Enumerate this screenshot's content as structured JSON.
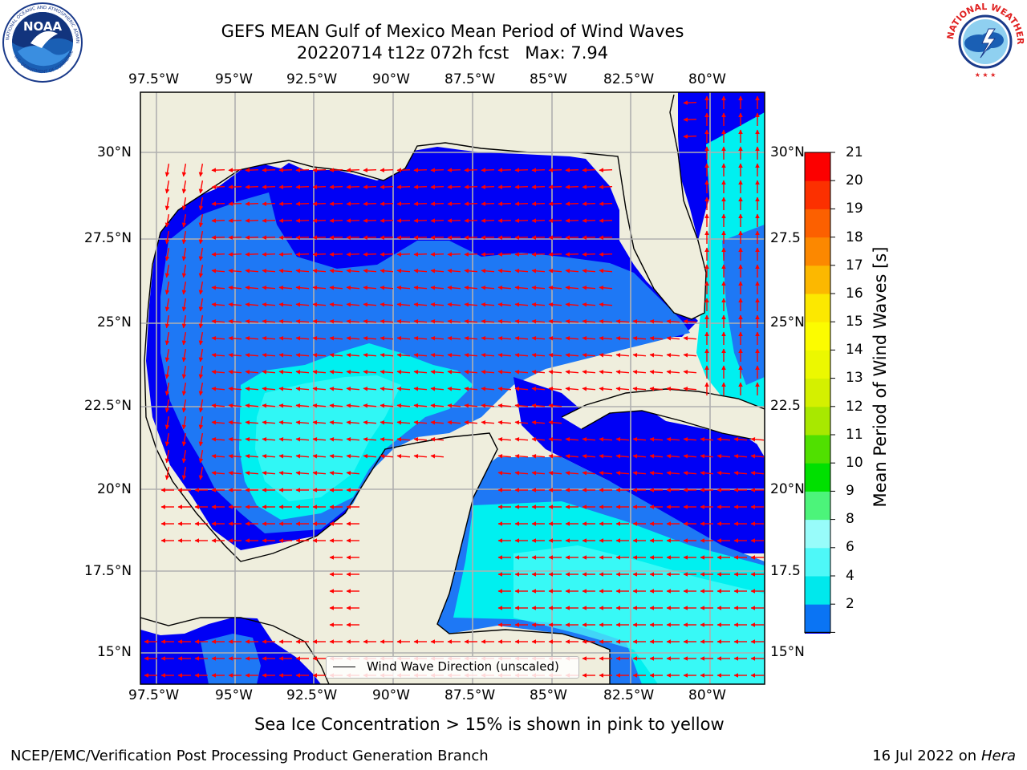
{
  "header": {
    "title_line1": "GEFS MEAN Gulf of Mexico Mean Period of Wind Waves",
    "title_line2": "20220714 t12z 072h fcst   Max: 7.94"
  },
  "logos": {
    "left": "NOAA",
    "left_ring_text": "NATIONAL OCEANIC AND ATMOSPHERIC ADMINISTRATION",
    "left_ring_text_bottom": "U.S. DEPARTMENT OF COMMERCE",
    "right_ring_text": "NATIONAL WEATHER SERVICE"
  },
  "map": {
    "lon_labels": [
      "97.5°W",
      "95°W",
      "92.5°W",
      "90°W",
      "87.5°W",
      "85°W",
      "82.5°W",
      "80°W"
    ],
    "lat_labels_left": [
      "30°N",
      "27.5°N",
      "25°N",
      "22.5°N",
      "20°N",
      "17.5°N",
      "15°N"
    ],
    "lat_labels_right": [
      "30°N",
      "27.5",
      "25°N",
      "22.5",
      "20°N",
      "17.5",
      "15°N"
    ],
    "legend_label": "Wind Wave Direction (unscaled)",
    "colors": {
      "land": "#efeedd",
      "band_2_4": "#0000f5",
      "band_4_6": "#1e78f5",
      "band_6_8": "#00f0f0",
      "band_8_9": "#50fcf8",
      "arrow": "#ff0000",
      "grid": "#b0b0b0"
    }
  },
  "colorbar": {
    "label": "Mean Period of Wind Waves [s]",
    "ticks": [
      "21",
      "20",
      "19",
      "18",
      "17",
      "16",
      "15",
      "14",
      "13",
      "12",
      "11",
      "10",
      "9",
      "8",
      "6",
      "4",
      "2"
    ],
    "colors_bottom_to_top": [
      "#0a74f4",
      "#00e8ec",
      "#4ef8f8",
      "#98fcfa",
      "#4cf47a",
      "#00e000",
      "#50e000",
      "#a8e800",
      "#d4f000",
      "#ecf800",
      "#fcfc00",
      "#fce800",
      "#fcb800",
      "#fc8800",
      "#fc6000",
      "#fc3000",
      "#fc0000"
    ],
    "extend_color": "#0000f0"
  },
  "notes": {
    "sea_ice": "Sea Ice Concentration > 15% is shown in pink to yellow"
  },
  "footer": {
    "left": "NCEP/EMC/Verification Post Processing Product Generation Branch",
    "right_prefix": "16 Jul 2022 on ",
    "right_host": "Hera"
  }
}
